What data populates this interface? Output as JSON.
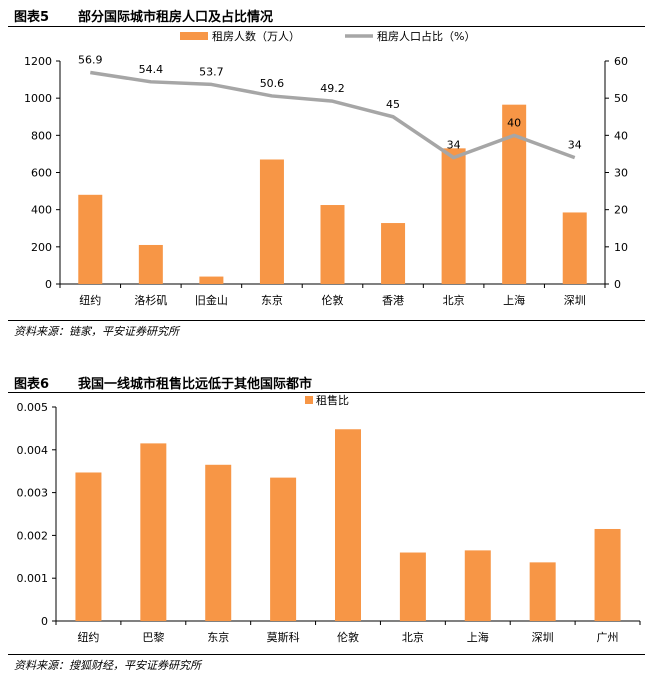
{
  "figure5": {
    "number": "图表5",
    "title": "部分国际城市租房人口及占比情况",
    "source": "资料来源：链家，平安证券研究所"
  },
  "figure6": {
    "number": "图表6",
    "title": "我国一线城市租售比远低于其他国际都市",
    "source": "资料来源：搜狐财经，平安证券研究所"
  },
  "colors": {
    "bar": "#F79646",
    "line": "#A6A6A6"
  },
  "chart_data": [
    {
      "type": "bar",
      "categories": [
        "纽约",
        "洛杉矶",
        "旧金山",
        "东京",
        "伦敦",
        "香港",
        "北京",
        "上海",
        "深圳"
      ],
      "series": [
        {
          "name": "租房人数（万人）",
          "type": "bar",
          "axis": "left",
          "values": [
            480,
            210,
            40,
            670,
            425,
            328,
            730,
            965,
            385
          ]
        },
        {
          "name": "租房人口占比（%）",
          "type": "line",
          "axis": "right",
          "values": [
            56.9,
            54.4,
            53.7,
            50.6,
            49.2,
            45,
            34,
            40,
            34
          ],
          "labels": [
            "56.9",
            "54.4",
            "53.7",
            "50.6",
            "49.2",
            "45",
            "34",
            "40",
            "34"
          ]
        }
      ],
      "ylim": [
        0,
        1200
      ],
      "yticks": [
        "0",
        "200",
        "400",
        "600",
        "800",
        "1000",
        "1200"
      ],
      "y2lim": [
        0,
        60
      ],
      "y2ticks": [
        "0",
        "10",
        "20",
        "30",
        "40",
        "50",
        "60"
      ],
      "legend": "top"
    },
    {
      "type": "bar",
      "categories": [
        "纽约",
        "巴黎",
        "东京",
        "莫斯科",
        "伦敦",
        "北京",
        "上海",
        "深圳",
        "广州"
      ],
      "series": [
        {
          "name": "租售比",
          "values": [
            0.00347,
            0.00415,
            0.00365,
            0.00335,
            0.00448,
            0.0016,
            0.00165,
            0.00137,
            0.00215
          ]
        }
      ],
      "ylim": [
        0,
        0.005
      ],
      "yticks": [
        "0",
        "0.001",
        "0.002",
        "0.003",
        "0.004",
        "0.005"
      ],
      "legend": "top"
    }
  ]
}
